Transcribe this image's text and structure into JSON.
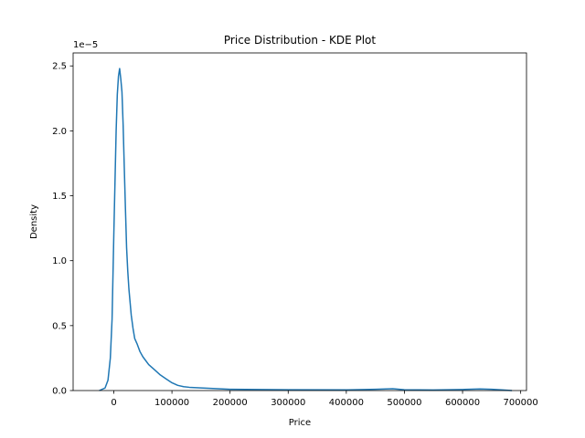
{
  "chart_data": {
    "type": "line",
    "title": "Price Distribution - KDE Plot",
    "xlabel": "Price",
    "ylabel": "Density",
    "y_offset_text": "1e−5",
    "xlim": [
      -70000,
      710000
    ],
    "ylim": [
      0,
      2.6
    ],
    "x_ticks": [
      0,
      100000,
      200000,
      300000,
      400000,
      500000,
      600000,
      700000
    ],
    "x_tick_labels": [
      "0",
      "100000",
      "200000",
      "300000",
      "400000",
      "500000",
      "600000",
      "700000"
    ],
    "y_ticks": [
      0,
      0.5,
      1.0,
      1.5,
      2.0,
      2.5
    ],
    "y_tick_labels": [
      "0.0",
      "0.5",
      "1.0",
      "1.5",
      "2.0",
      "2.5"
    ],
    "grid": false,
    "legend": "none",
    "line_color": "#1f77b4",
    "series": [
      {
        "x": [
          -25000,
          -15000,
          -10000,
          -6000,
          -3000,
          0,
          2000,
          4000,
          6000,
          8000,
          10000,
          12000,
          14000,
          16000,
          18000,
          20000,
          22000,
          24000,
          26000,
          28000,
          30000,
          33000,
          36000,
          40000,
          45000,
          50000,
          60000,
          70000,
          80000,
          90000,
          100000,
          110000,
          120000,
          130000,
          150000,
          175000,
          200000,
          250000,
          300000,
          400000,
          450000,
          480000,
          500000,
          550000,
          600000,
          630000,
          650000,
          670000,
          685000
        ],
        "y": [
          0.0,
          0.02,
          0.08,
          0.25,
          0.55,
          1.2,
          1.6,
          2.0,
          2.28,
          2.42,
          2.48,
          2.4,
          2.3,
          2.05,
          1.72,
          1.4,
          1.1,
          0.92,
          0.78,
          0.68,
          0.58,
          0.48,
          0.4,
          0.36,
          0.3,
          0.26,
          0.2,
          0.16,
          0.12,
          0.09,
          0.06,
          0.04,
          0.03,
          0.025,
          0.02,
          0.015,
          0.01,
          0.008,
          0.006,
          0.005,
          0.01,
          0.014,
          0.006,
          0.004,
          0.008,
          0.012,
          0.01,
          0.004,
          0.0
        ]
      }
    ]
  }
}
